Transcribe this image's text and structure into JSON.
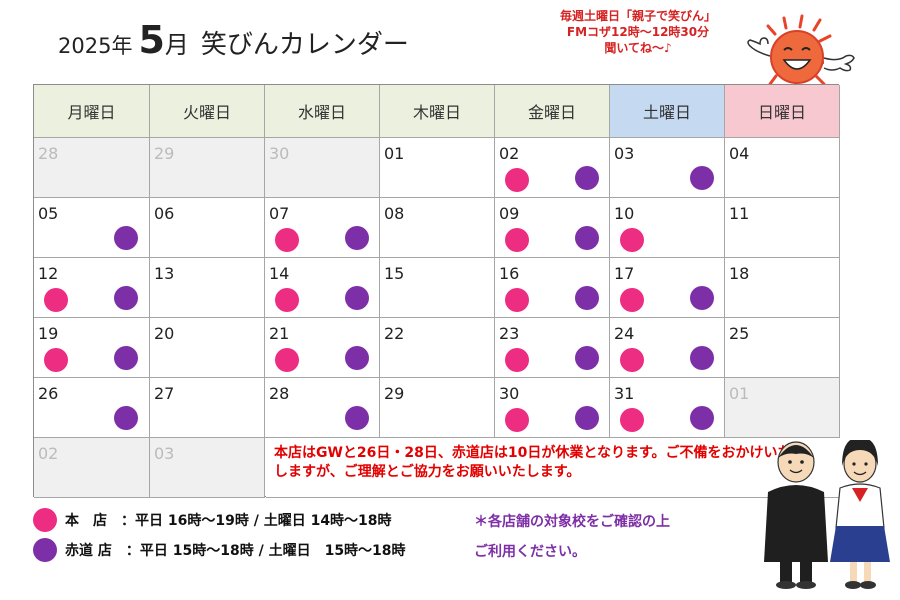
{
  "header": {
    "year_label": "2025年",
    "month_number": "5",
    "month_kanji": "月",
    "calendar_name": "笑びんカレンダー"
  },
  "radio_notice": {
    "line1": "毎週土曜日「親子で笑びん」",
    "line2": "FMコザ12時～12時30分",
    "line3": "聞いてね～♪"
  },
  "weekdays": [
    {
      "label": "月曜日",
      "color": "#ebf1de"
    },
    {
      "label": "火曜日",
      "color": "#ebf1de"
    },
    {
      "label": "水曜日",
      "color": "#ebf1de"
    },
    {
      "label": "木曜日",
      "color": "#ebf1de"
    },
    {
      "label": "金曜日",
      "color": "#ebf1de"
    },
    {
      "label": "土曜日",
      "color": "#c5d9f1"
    },
    {
      "label": "日曜日",
      "color": "#f8c8d0"
    }
  ],
  "store_colors": {
    "honten": "#ec2d82",
    "akamichi": "#7d2fa7"
  },
  "weeks": [
    [
      {
        "day": "28",
        "out": true,
        "honten": false,
        "akamichi": false
      },
      {
        "day": "29",
        "out": true,
        "honten": false,
        "akamichi": false
      },
      {
        "day": "30",
        "out": true,
        "honten": false,
        "akamichi": false
      },
      {
        "day": "01",
        "out": false,
        "honten": false,
        "akamichi": false
      },
      {
        "day": "02",
        "out": false,
        "honten": true,
        "akamichi": true
      },
      {
        "day": "03",
        "out": false,
        "honten": false,
        "akamichi": true
      },
      {
        "day": "04",
        "out": false,
        "honten": false,
        "akamichi": false
      }
    ],
    [
      {
        "day": "05",
        "out": false,
        "honten": false,
        "akamichi": true
      },
      {
        "day": "06",
        "out": false,
        "honten": false,
        "akamichi": false
      },
      {
        "day": "07",
        "out": false,
        "honten": true,
        "akamichi": true
      },
      {
        "day": "08",
        "out": false,
        "honten": false,
        "akamichi": false
      },
      {
        "day": "09",
        "out": false,
        "honten": true,
        "akamichi": true
      },
      {
        "day": "10",
        "out": false,
        "honten": true,
        "akamichi": false
      },
      {
        "day": "11",
        "out": false,
        "honten": false,
        "akamichi": false
      }
    ],
    [
      {
        "day": "12",
        "out": false,
        "honten": true,
        "akamichi": true
      },
      {
        "day": "13",
        "out": false,
        "honten": false,
        "akamichi": false
      },
      {
        "day": "14",
        "out": false,
        "honten": true,
        "akamichi": true
      },
      {
        "day": "15",
        "out": false,
        "honten": false,
        "akamichi": false
      },
      {
        "day": "16",
        "out": false,
        "honten": true,
        "akamichi": true
      },
      {
        "day": "17",
        "out": false,
        "honten": true,
        "akamichi": true
      },
      {
        "day": "18",
        "out": false,
        "honten": false,
        "akamichi": false
      }
    ],
    [
      {
        "day": "19",
        "out": false,
        "honten": true,
        "akamichi": true
      },
      {
        "day": "20",
        "out": false,
        "honten": false,
        "akamichi": false
      },
      {
        "day": "21",
        "out": false,
        "honten": true,
        "akamichi": true
      },
      {
        "day": "22",
        "out": false,
        "honten": false,
        "akamichi": false
      },
      {
        "day": "23",
        "out": false,
        "honten": true,
        "akamichi": true
      },
      {
        "day": "24",
        "out": false,
        "honten": true,
        "akamichi": true
      },
      {
        "day": "25",
        "out": false,
        "honten": false,
        "akamichi": false
      }
    ],
    [
      {
        "day": "26",
        "out": false,
        "honten": false,
        "akamichi": true
      },
      {
        "day": "27",
        "out": false,
        "honten": false,
        "akamichi": false
      },
      {
        "day": "28",
        "out": false,
        "honten": false,
        "akamichi": true
      },
      {
        "day": "29",
        "out": false,
        "honten": false,
        "akamichi": false
      },
      {
        "day": "30",
        "out": false,
        "honten": true,
        "akamichi": true
      },
      {
        "day": "31",
        "out": false,
        "honten": true,
        "akamichi": true
      },
      {
        "day": "01",
        "out": true,
        "honten": false,
        "akamichi": false
      }
    ],
    [
      {
        "day": "02",
        "out": true,
        "honten": false,
        "akamichi": false
      },
      {
        "day": "03",
        "out": true,
        "honten": false,
        "akamichi": false
      }
    ]
  ],
  "closure_message": "本店はGWと26日・28日、赤道店は10日が休業となります。ご不備をおかけいたしますが、ご理解とご協力をお願いいたします。",
  "legend": [
    {
      "text": "本　店　：平日 16時～19時 / 土曜日 14時～18時",
      "color": "#ec2d82"
    },
    {
      "text": "赤道 店　：平日 15時～18時 / 土曜日　15時～18時",
      "color": "#7d2fa7"
    }
  ],
  "note": {
    "line1": "＊各店舗の対象校をご確認の上",
    "line2": "ご利用ください。"
  }
}
